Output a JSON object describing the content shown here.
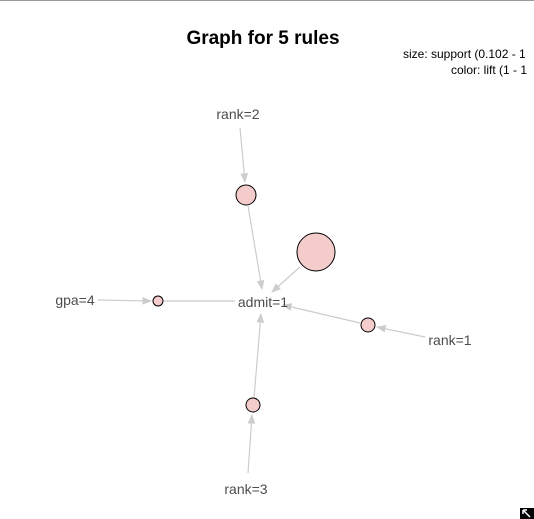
{
  "title": "Graph for 5 rules",
  "legend": {
    "size": "size: support (0.102 - 1",
    "color": "color: lift (1 - 1"
  },
  "items": {
    "rank2": "rank=2",
    "rank1": "rank=1",
    "rank3": "rank=3",
    "gpa4": "gpa=4",
    "admit1": "admit=1"
  },
  "colors": {
    "rule_fill": "#f4cccc",
    "rule_stroke": "#000000",
    "edge": "#cccccc",
    "label": "#4d4d4d"
  },
  "icons": {
    "corner": "resize-corner-icon"
  }
}
